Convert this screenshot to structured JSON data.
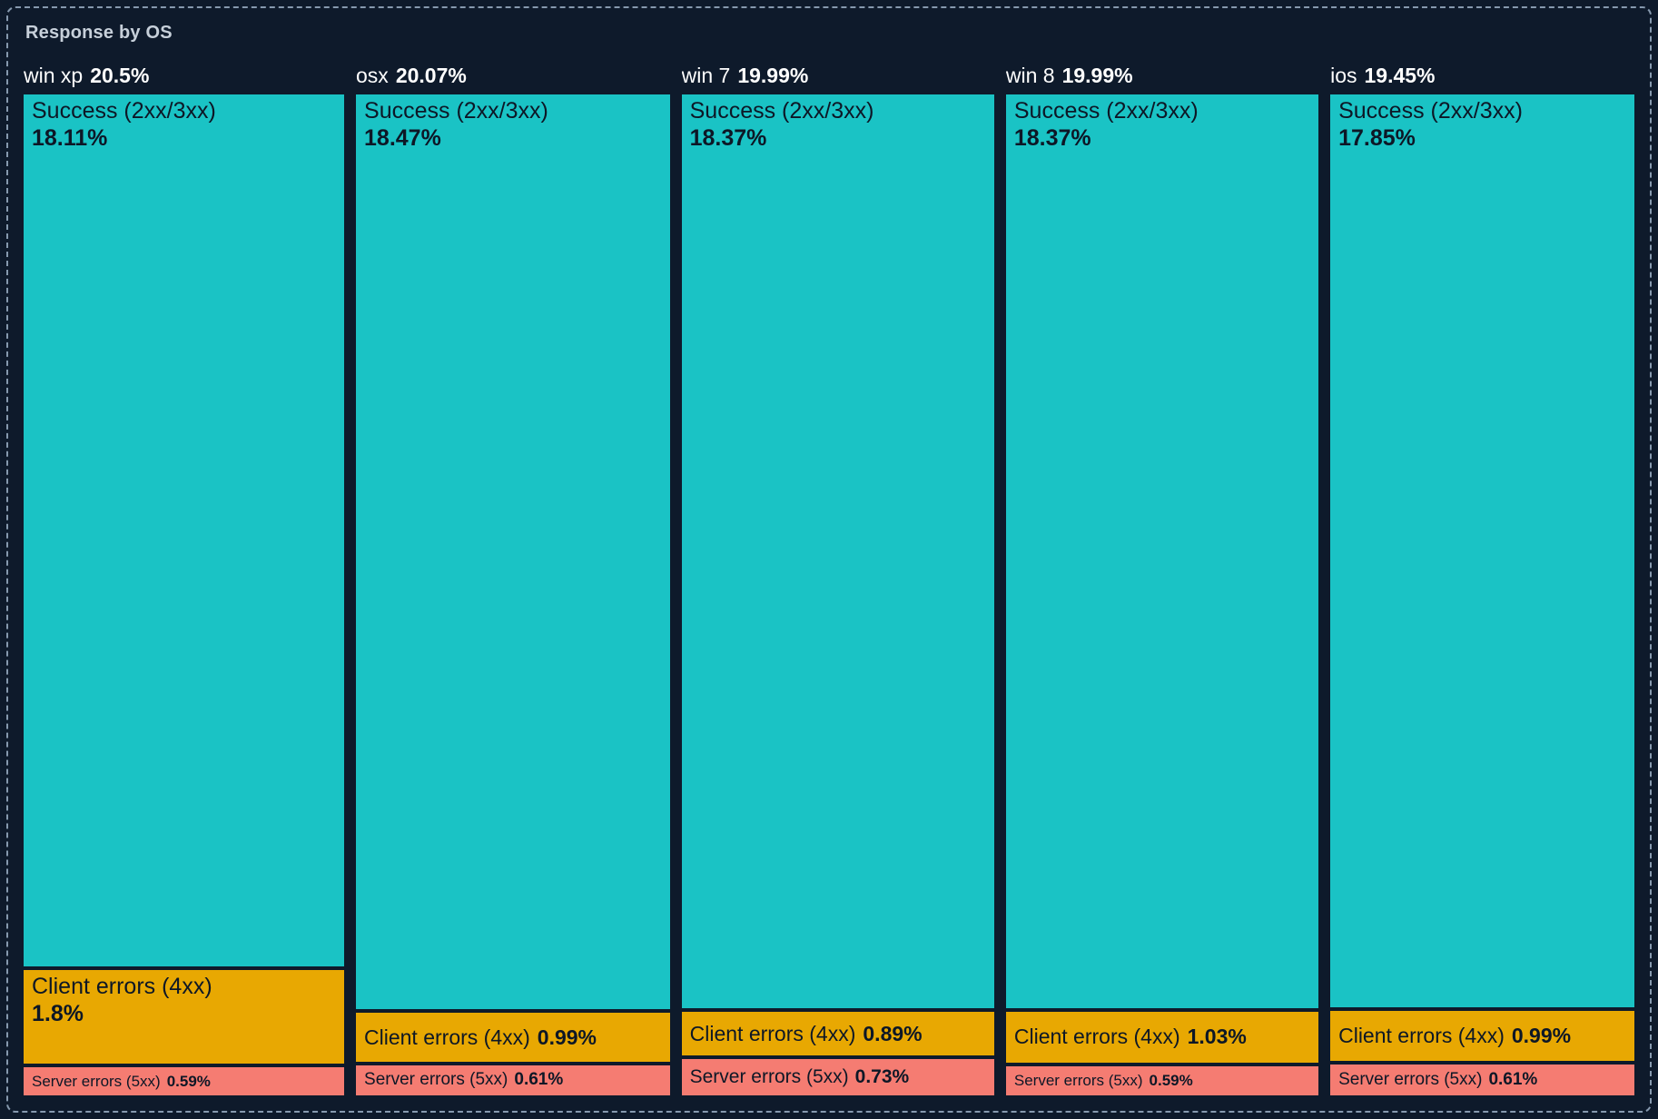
{
  "title": "Response by OS",
  "labels": {
    "success": "Success (2xx/3xx)",
    "client": "Client errors (4xx)",
    "server": "Server errors (5xx)"
  },
  "columns": [
    {
      "name": "win xp",
      "total": "20.5%",
      "success": "18.11%",
      "client": "1.8%",
      "server": "0.59%"
    },
    {
      "name": "osx",
      "total": "20.07%",
      "success": "18.47%",
      "client": "0.99%",
      "server": "0.61%"
    },
    {
      "name": "win 7",
      "total": "19.99%",
      "success": "18.37%",
      "client": "0.89%",
      "server": "0.73%"
    },
    {
      "name": "win 8",
      "total": "19.99%",
      "success": "18.37%",
      "client": "1.03%",
      "server": "0.59%"
    },
    {
      "name": "ios",
      "total": "19.45%",
      "success": "17.85%",
      "client": "0.99%",
      "server": "0.61%"
    }
  ],
  "colors": {
    "background": "#0e1a2b",
    "success": "#1ac3c5",
    "client_errors": "#e8a802",
    "server_errors": "#f57c72",
    "panel_border": "#8699ae",
    "title_text": "#c7d0da",
    "header_text": "#ffffff",
    "segment_text": "#0d1726"
  },
  "chart_data": {
    "type": "bar",
    "variant": "marimekko / mosaic treemap: column width proportional to OS total, segment height proportional to status share",
    "title": "Response by OS",
    "categories": [
      "win xp",
      "osx",
      "win 7",
      "win 8",
      "ios"
    ],
    "column_totals": [
      20.5,
      20.07,
      19.99,
      19.99,
      19.45
    ],
    "series": [
      {
        "name": "Success (2xx/3xx)",
        "color": "#1ac3c5",
        "values": [
          18.11,
          18.47,
          18.37,
          18.37,
          17.85
        ]
      },
      {
        "name": "Client errors (4xx)",
        "color": "#e8a802",
        "values": [
          1.8,
          0.99,
          0.89,
          1.03,
          0.99
        ]
      },
      {
        "name": "Server errors (5xx)",
        "color": "#f57c72",
        "values": [
          0.59,
          0.61,
          0.73,
          0.59,
          0.61
        ]
      }
    ],
    "unit": "%",
    "legend": false,
    "axes": false
  }
}
